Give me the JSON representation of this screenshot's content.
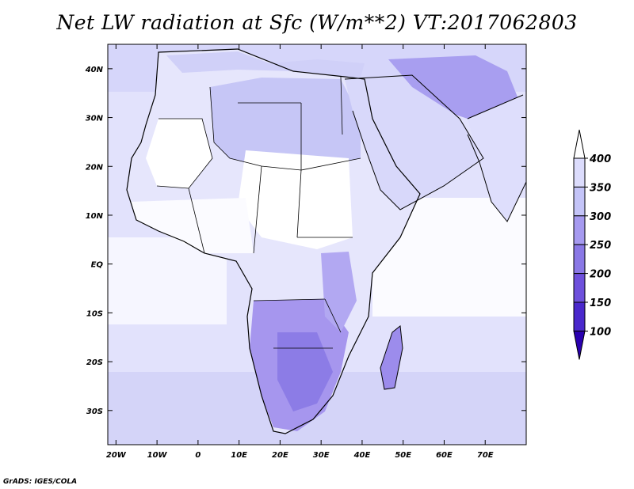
{
  "title": "Net LW radiation at Sfc (W/m**2) VT:2017062803",
  "credit": "GrADS: IGES/COLA",
  "map": {
    "lon_range": [
      -22,
      80
    ],
    "lat_range": [
      -37,
      45
    ],
    "lat_ticks": [
      {
        "value": 40,
        "label": "40N"
      },
      {
        "value": 30,
        "label": "30N"
      },
      {
        "value": 20,
        "label": "20N"
      },
      {
        "value": 10,
        "label": "10N"
      },
      {
        "value": 0,
        "label": "EQ"
      },
      {
        "value": -10,
        "label": "10S"
      },
      {
        "value": -20,
        "label": "20S"
      },
      {
        "value": -30,
        "label": "30S"
      }
    ],
    "lon_ticks": [
      {
        "value": -20,
        "label": "20W"
      },
      {
        "value": -10,
        "label": "10W"
      },
      {
        "value": 0,
        "label": "0"
      },
      {
        "value": 10,
        "label": "10E"
      },
      {
        "value": 20,
        "label": "20E"
      },
      {
        "value": 30,
        "label": "30E"
      },
      {
        "value": 40,
        "label": "40E"
      },
      {
        "value": 50,
        "label": "50E"
      },
      {
        "value": 60,
        "label": "60E"
      },
      {
        "value": 70,
        "label": "70E"
      }
    ]
  },
  "colorbar": {
    "labels": [
      "400",
      "350",
      "300",
      "250",
      "200",
      "150",
      "100"
    ],
    "colors": [
      "#ffffff",
      "#dcdcfc",
      "#c4c4f8",
      "#a69af0",
      "#8a78e6",
      "#6e50dc",
      "#4a28cc",
      "#2a00b0"
    ]
  }
}
